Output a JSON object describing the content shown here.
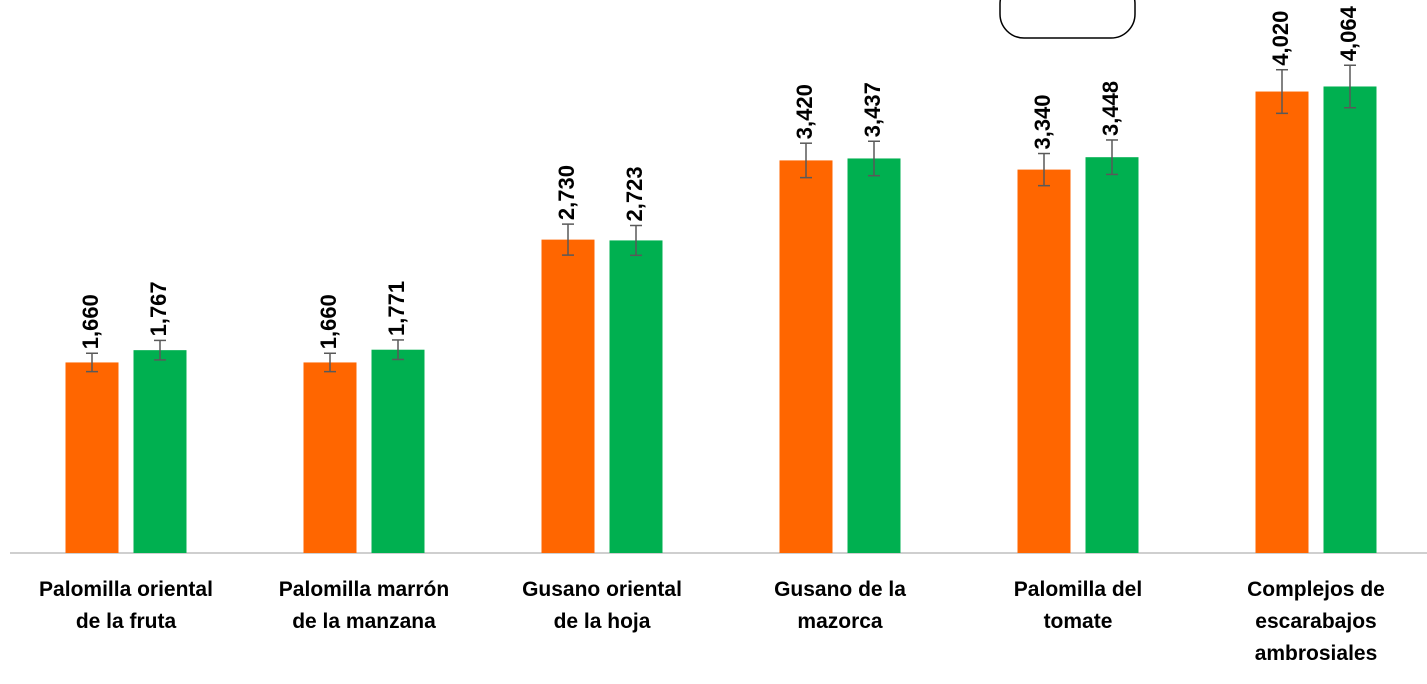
{
  "chart_data": {
    "type": "bar",
    "categories": [
      "Palomilla oriental\nde la fruta",
      "Palomilla marrón\nde la manzana",
      "Gusano oriental\nde la hoja",
      "Gusano de la\nmazorca",
      "Palomilla del\ntomate",
      "Complejos de\nescarabajos\nambrosiales"
    ],
    "series": [
      {
        "color": "#ff6600",
        "values": [
          1660,
          1660,
          2730,
          3420,
          3340,
          4020
        ],
        "value_labels": [
          "1,660",
          "1,660",
          "2,730",
          "3,420",
          "3,340",
          "4,020"
        ],
        "errors": [
          80,
          80,
          135,
          150,
          140,
          190
        ]
      },
      {
        "color": "#00b050",
        "values": [
          1767,
          1771,
          2723,
          3437,
          3448,
          4064
        ],
        "value_labels": [
          "1,767",
          "1,771",
          "2,723",
          "3,437",
          "3,448",
          "4,064"
        ],
        "errors": [
          85,
          85,
          130,
          150,
          150,
          185
        ]
      }
    ],
    "ylim": [
      0,
      4800
    ]
  }
}
